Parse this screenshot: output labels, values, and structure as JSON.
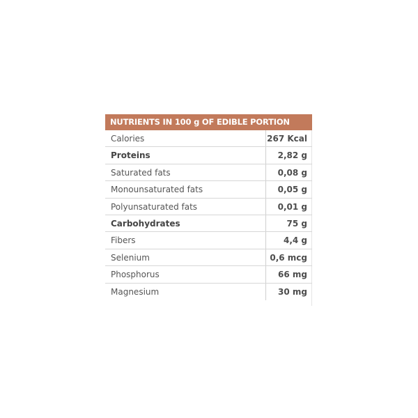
{
  "table": {
    "header": "NUTRIENTS IN 100 g OF EDIBLE PORTION",
    "header_color": "#c27a5b",
    "rows": [
      {
        "label": "Calories",
        "value": "267 Kcal",
        "bold": false
      },
      {
        "label": "Proteins",
        "value": "2,82 g",
        "bold": true
      },
      {
        "label": "Saturated fats",
        "value": "0,08 g",
        "bold": false
      },
      {
        "label": "Monounsaturated fats",
        "value": "0,05 g",
        "bold": false
      },
      {
        "label": "Polyunsaturated fats",
        "value": "0,01 g",
        "bold": false
      },
      {
        "label": "Carbohydrates",
        "value": "75 g",
        "bold": true
      },
      {
        "label": "Fibers",
        "value": "4,4 g",
        "bold": false
      },
      {
        "label": "Selenium",
        "value": "0,6 mcg",
        "bold": false
      },
      {
        "label": "Phosphorus",
        "value": "66 mg",
        "bold": false
      },
      {
        "label": "Magnesium",
        "value": "30 mg",
        "bold": false
      }
    ]
  }
}
